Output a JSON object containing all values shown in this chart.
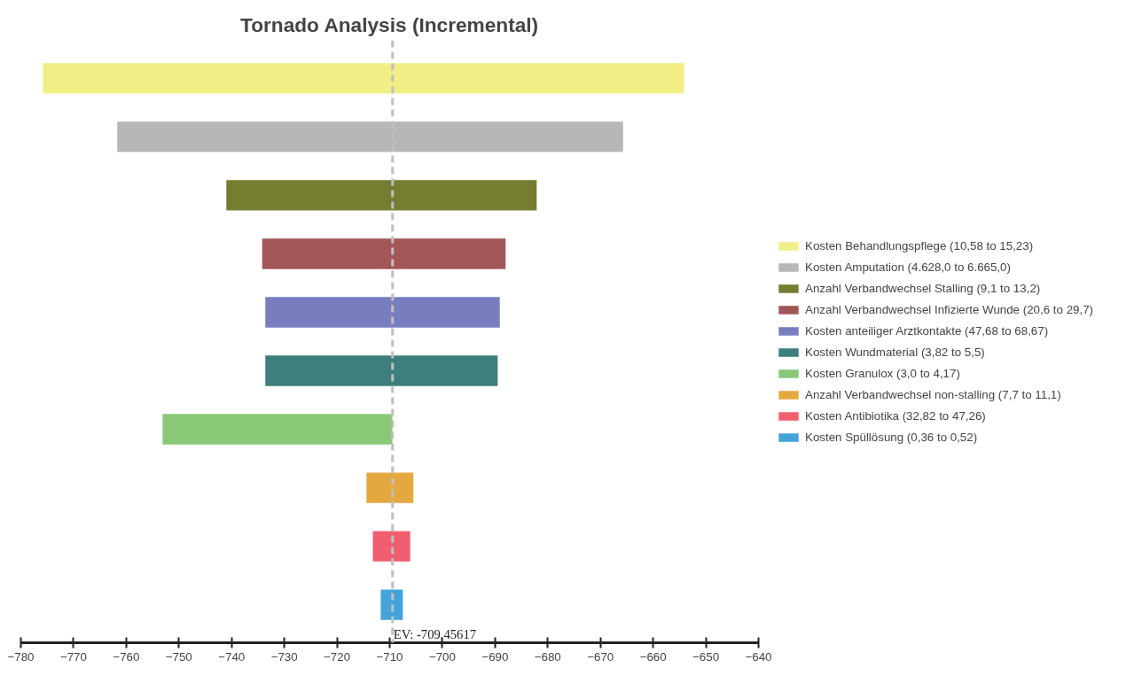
{
  "chart_data": {
    "type": "bar",
    "title": "Tornado Analysis (Incremental)",
    "orientation": "horizontal",
    "categories": [
      null,
      null,
      null,
      null,
      null,
      null,
      null,
      null,
      null,
      null
    ],
    "series": [
      {
        "name": "Kosten Behandlungspflege (10,58 to 15,23)",
        "color": "#f2ee86",
        "values": [
          121.7,
          null,
          null,
          null,
          null,
          null,
          null,
          null,
          null,
          null
        ],
        "base": [
          -775.8,
          null,
          null,
          null,
          null,
          null,
          null,
          null,
          null,
          null
        ]
      },
      {
        "name": "Kosten Amputation (4.628,0 to 6.665,0)",
        "color": "#b7b7b9",
        "values": [
          null,
          96.0,
          null,
          null,
          null,
          null,
          null,
          null,
          null,
          null
        ],
        "base": [
          null,
          -761.7,
          null,
          null,
          null,
          null,
          null,
          null,
          null,
          null
        ]
      },
      {
        "name": "Anzahl Verbandwechsel Stalling (9,1 to 13,2)",
        "color": "#767c30",
        "values": [
          null,
          null,
          58.9,
          null,
          null,
          null,
          null,
          null,
          null,
          null
        ],
        "base": [
          null,
          null,
          -741.0,
          null,
          null,
          null,
          null,
          null,
          null,
          null
        ]
      },
      {
        "name": "Anzahl Verbandwechsel Infizierte Wunde (20,6 to 29,7)",
        "color": "#a35657",
        "values": [
          null,
          null,
          null,
          46.2,
          null,
          null,
          null,
          null,
          null,
          null
        ],
        "base": [
          null,
          null,
          null,
          -734.2,
          null,
          null,
          null,
          null,
          null,
          null
        ]
      },
      {
        "name": "Kosten anteiliger Arztkontakte (47,68 to 68,67)",
        "color": "#787dbf",
        "values": [
          null,
          null,
          null,
          null,
          44.5,
          null,
          null,
          null,
          null,
          null
        ],
        "base": [
          null,
          null,
          null,
          null,
          -733.6,
          null,
          null,
          null,
          null,
          null
        ]
      },
      {
        "name": "Kosten Wundmaterial (3,82 to 5,5)",
        "color": "#3c7f7d",
        "values": [
          null,
          null,
          null,
          null,
          null,
          44.1,
          null,
          null,
          null,
          null
        ],
        "base": [
          null,
          null,
          null,
          null,
          null,
          -733.6,
          null,
          null,
          null,
          null
        ]
      },
      {
        "name": "Kosten Granulox (3,0 to 4,17)",
        "color": "#88c877",
        "values": [
          null,
          null,
          null,
          null,
          null,
          null,
          43.6,
          null,
          null,
          null
        ],
        "base": [
          null,
          null,
          null,
          null,
          null,
          null,
          -753.1,
          null,
          null,
          null
        ]
      },
      {
        "name": "Anzahl Verbandwechsel non-stalling (7,7 to 11,1)",
        "color": "#e4a840",
        "values": [
          null,
          null,
          null,
          null,
          null,
          null,
          null,
          8.9,
          null,
          null
        ],
        "base": [
          null,
          null,
          null,
          null,
          null,
          null,
          null,
          -714.4,
          null,
          null
        ]
      },
      {
        "name": "Kosten Antibiotika (32,82 to 47,26)",
        "color": "#ef5f6f",
        "values": [
          null,
          null,
          null,
          null,
          null,
          null,
          null,
          null,
          7.1,
          null
        ],
        "base": [
          null,
          null,
          null,
          null,
          null,
          null,
          null,
          null,
          -713.2,
          null
        ]
      },
      {
        "name": "Kosten Spüllösung (0,36 to 0,52)",
        "color": "#43a3da",
        "values": [
          null,
          null,
          null,
          null,
          null,
          null,
          null,
          null,
          null,
          4.2
        ],
        "base": [
          null,
          null,
          null,
          null,
          null,
          null,
          null,
          null,
          null,
          -711.7
        ]
      }
    ],
    "xlim": [
      -780,
      -640
    ],
    "xticks": [
      -780,
      -770,
      -760,
      -750,
      -740,
      -730,
      -720,
      -710,
      -700,
      -690,
      -680,
      -670,
      -660,
      -650,
      -640
    ],
    "ref_lines": [
      {
        "axis": "x",
        "value": -709.45617,
        "label": "EV: -709.45617",
        "color": "#c0c0c0",
        "line_style": "dashed"
      }
    ],
    "tick_labels": "x",
    "grid": false,
    "legend": "right"
  }
}
